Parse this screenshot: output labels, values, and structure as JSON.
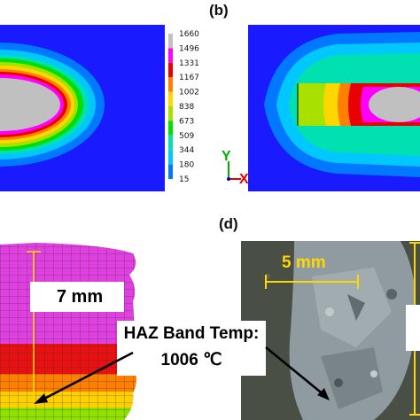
{
  "panel_labels": {
    "b": "(b)",
    "d": "(d)"
  },
  "colorbar": {
    "values": [
      "1660",
      "1496",
      "1331",
      "1167",
      "1002",
      "838",
      "673",
      "509",
      "344",
      "180",
      "15"
    ],
    "colors": [
      "#c0c0c0",
      "#ff00ff",
      "#e80000",
      "#ff8000",
      "#ffd700",
      "#a8e000",
      "#00e000",
      "#00e0b0",
      "#00c8ff",
      "#0078ff",
      "#1a1aff"
    ]
  },
  "axes_triad": {
    "y": "Y",
    "x": "X"
  },
  "fea": {
    "measure": "7 mm",
    "haz_line1": "HAZ Band Temp:",
    "haz_line2": "1006 ℃"
  },
  "photo": {
    "scale": "5 mm"
  },
  "background_color": "#1a1aff"
}
